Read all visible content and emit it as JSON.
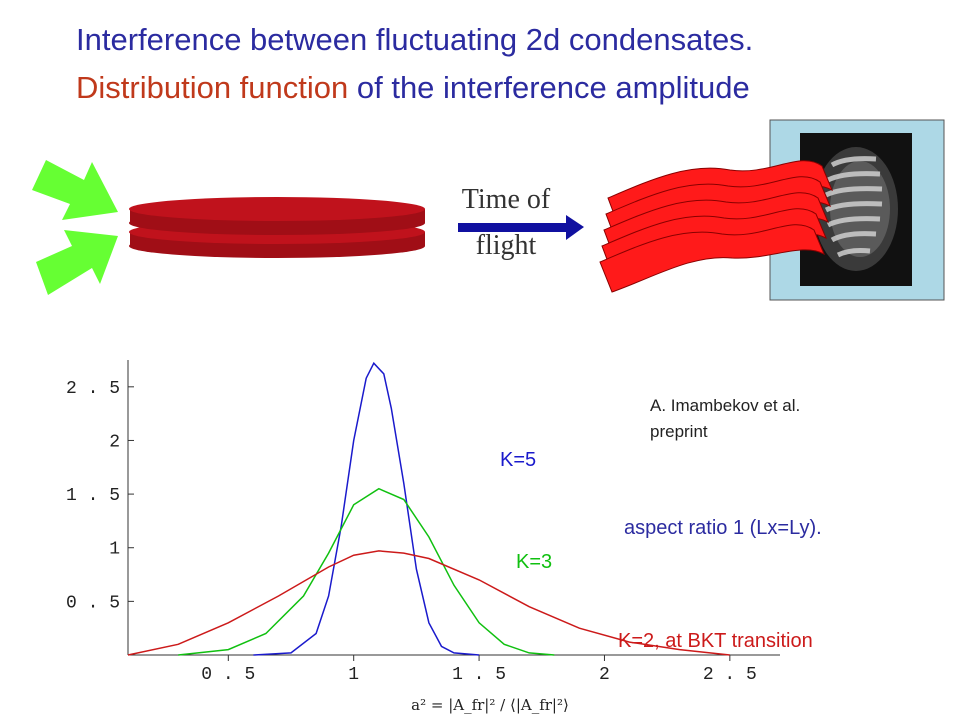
{
  "header": {
    "title_line1": "Interference between fluctuating 2d condensates.",
    "title_line2_highlight": "Distribution function",
    "title_line2_rest": " of the interference amplitude"
  },
  "illustration": {
    "arrow_label_line1": "Time of",
    "arrow_label_line2": "flight"
  },
  "citation": {
    "line1": "A.  Imambekov et al.",
    "line2": "preprint"
  },
  "annotation": {
    "aspect_ratio": "aspect ratio  1 (Lx=Ly)."
  },
  "colors": {
    "title_blue": "#2b2ba0",
    "title_red": "#c0391b",
    "k5": "#1a1acc",
    "k3": "#10c010",
    "k2": "#cc1a1a",
    "arrow_green": "#66ff33",
    "disk_red": "#c0121c",
    "sheet_red": "#ff1a1a",
    "frame_cyan": "#add8e6"
  },
  "chart_data": {
    "type": "line",
    "xlabel": "a² = |A_fr|² / ⟨|A_fr|²⟩",
    "x_tick_labels": [
      "0.5",
      "1",
      "1.5",
      "2",
      "2.5"
    ],
    "y_tick_labels": [
      "0.5",
      "1",
      "1.5",
      "2",
      "2.5"
    ],
    "xlim": [
      0.1,
      2.7
    ],
    "ylim": [
      0,
      2.75
    ],
    "series": [
      {
        "name": "K=5",
        "color": "#1a1acc",
        "x": [
          0.6,
          0.75,
          0.85,
          0.9,
          0.95,
          1.0,
          1.05,
          1.08,
          1.12,
          1.15,
          1.2,
          1.25,
          1.3,
          1.35,
          1.4,
          1.5
        ],
        "y": [
          0.0,
          0.02,
          0.2,
          0.55,
          1.2,
          2.0,
          2.58,
          2.72,
          2.62,
          2.3,
          1.6,
          0.8,
          0.3,
          0.08,
          0.02,
          0.0
        ]
      },
      {
        "name": "K=3",
        "color": "#10c010",
        "x": [
          0.3,
          0.5,
          0.65,
          0.8,
          0.9,
          1.0,
          1.1,
          1.2,
          1.3,
          1.4,
          1.5,
          1.6,
          1.7,
          1.8
        ],
        "y": [
          0.0,
          0.05,
          0.2,
          0.55,
          0.95,
          1.4,
          1.55,
          1.45,
          1.1,
          0.65,
          0.3,
          0.1,
          0.02,
          0.0
        ]
      },
      {
        "name": "K=2, at BKT transition",
        "color": "#cc1a1a",
        "x": [
          0.1,
          0.3,
          0.5,
          0.7,
          0.9,
          1.0,
          1.1,
          1.2,
          1.3,
          1.5,
          1.7,
          1.9,
          2.1,
          2.3,
          2.5
        ],
        "y": [
          0.0,
          0.1,
          0.3,
          0.55,
          0.82,
          0.93,
          0.97,
          0.95,
          0.9,
          0.7,
          0.45,
          0.25,
          0.12,
          0.05,
          0.0
        ]
      }
    ]
  }
}
